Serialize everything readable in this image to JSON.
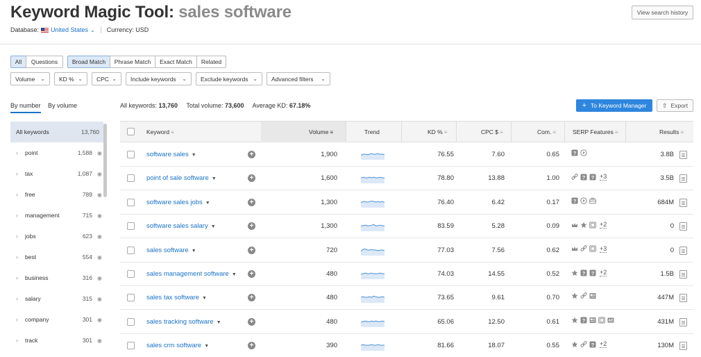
{
  "header": {
    "title": "Keyword Magic Tool:",
    "query": "sales software",
    "database_label": "Database:",
    "database_value": "United States",
    "currency": "Currency: USD",
    "history_button": "View search history"
  },
  "filters": {
    "group1": [
      "All",
      "Questions"
    ],
    "group2": [
      "Broad Match",
      "Phrase Match",
      "Exact Match",
      "Related"
    ],
    "dropdowns": [
      "Volume",
      "KD %",
      "CPC",
      "Include keywords",
      "Exclude keywords",
      "Advanced filters"
    ]
  },
  "sidebar": {
    "tabs": [
      "By number",
      "By volume"
    ],
    "items": [
      {
        "label": "All keywords",
        "count": "13,760"
      },
      {
        "label": "point",
        "count": "1,588"
      },
      {
        "label": "tax",
        "count": "1,087"
      },
      {
        "label": "free",
        "count": "789"
      },
      {
        "label": "management",
        "count": "715"
      },
      {
        "label": "jobs",
        "count": "623"
      },
      {
        "label": "best",
        "count": "554"
      },
      {
        "label": "business",
        "count": "316"
      },
      {
        "label": "salary",
        "count": "315"
      },
      {
        "label": "company",
        "count": "301"
      },
      {
        "label": "track",
        "count": "301"
      }
    ]
  },
  "stats": {
    "all_keywords_label": "All keywords:",
    "all_keywords_value": "13,760",
    "total_volume_label": "Total volume:",
    "total_volume_value": "73,600",
    "avg_kd_label": "Average KD:",
    "avg_kd_value": "67.18%"
  },
  "actions": {
    "keyword_manager": "To Keyword Manager",
    "export": "Export"
  },
  "table": {
    "columns": [
      "Keyword",
      "Volume",
      "Trend",
      "KD %",
      "CPC $",
      "Com.",
      "SERP Features",
      "Results"
    ],
    "rows": [
      {
        "keyword": "software sales",
        "volume": "1,900",
        "kd": "76.55",
        "cpc": "7.60",
        "com": "0.65",
        "serp_extra": "",
        "results": "3.8B",
        "serp_icons": [
          "question-icon",
          "play-icon"
        ],
        "trend": [
          0.4,
          0.5,
          0.5,
          0.45,
          0.5,
          0.55,
          0.5,
          0.5,
          0.55,
          0.5,
          0.5,
          0.45
        ]
      },
      {
        "keyword": "point of sale software",
        "volume": "1,600",
        "kd": "78.80",
        "cpc": "13.88",
        "com": "1.00",
        "serp_extra": "+3",
        "results": "3.5B",
        "serp_icons": [
          "link-icon",
          "question-icon",
          "question-icon"
        ],
        "trend": [
          0.5,
          0.55,
          0.5,
          0.5,
          0.55,
          0.5,
          0.55,
          0.5,
          0.5,
          0.55,
          0.5,
          0.5
        ]
      },
      {
        "keyword": "software sales jobs",
        "volume": "1,300",
        "kd": "76.40",
        "cpc": "6.42",
        "com": "0.17",
        "serp_extra": "",
        "results": "684M",
        "serp_icons": [
          "question-icon",
          "play-icon",
          "briefcase-icon"
        ],
        "trend": [
          0.45,
          0.55,
          0.55,
          0.5,
          0.55,
          0.6,
          0.55,
          0.5,
          0.55,
          0.5,
          0.55,
          0.5
        ]
      },
      {
        "keyword": "software sales salary",
        "volume": "1,300",
        "kd": "83.59",
        "cpc": "5.28",
        "com": "0.09",
        "serp_extra": "+2",
        "results": "0",
        "serp_icons": [
          "crown-icon",
          "star-icon",
          "image-icon"
        ],
        "trend": [
          0.5,
          0.5,
          0.55,
          0.5,
          0.5,
          0.55,
          0.6,
          0.5,
          0.5,
          0.55,
          0.5,
          0.5
        ]
      },
      {
        "keyword": "sales software",
        "volume": "720",
        "kd": "77.03",
        "cpc": "7.56",
        "com": "0.62",
        "serp_extra": "+3",
        "results": "0",
        "serp_icons": [
          "crown-icon",
          "link-icon",
          "image-icon"
        ],
        "trend": [
          0.4,
          0.55,
          0.6,
          0.5,
          0.5,
          0.55,
          0.5,
          0.5,
          0.45,
          0.5,
          0.5,
          0.45
        ]
      },
      {
        "keyword": "sales management software",
        "volume": "480",
        "kd": "74.03",
        "cpc": "14.55",
        "com": "0.52",
        "serp_extra": "+2",
        "results": "1.5B",
        "serp_icons": [
          "star-icon",
          "question-icon",
          "question-icon"
        ],
        "trend": [
          0.45,
          0.5,
          0.55,
          0.5,
          0.5,
          0.55,
          0.5,
          0.5,
          0.5,
          0.55,
          0.5,
          0.5
        ]
      },
      {
        "keyword": "sales tax software",
        "volume": "480",
        "kd": "73.65",
        "cpc": "9.61",
        "com": "0.70",
        "serp_extra": "",
        "results": "447M",
        "serp_icons": [
          "star-icon",
          "link-icon",
          "news-icon"
        ],
        "trend": [
          0.5,
          0.55,
          0.5,
          0.5,
          0.55,
          0.5,
          0.6,
          0.55,
          0.5,
          0.5,
          0.55,
          0.5
        ]
      },
      {
        "keyword": "sales tracking software",
        "volume": "480",
        "kd": "65.06",
        "cpc": "12.50",
        "com": "0.61",
        "serp_extra": "",
        "results": "431M",
        "serp_icons": [
          "star-icon",
          "question-icon",
          "news-icon",
          "image-icon",
          "ad-icon"
        ],
        "trend": [
          0.45,
          0.5,
          0.55,
          0.5,
          0.5,
          0.55,
          0.5,
          0.55,
          0.5,
          0.5,
          0.55,
          0.5
        ]
      },
      {
        "keyword": "sales crm software",
        "volume": "390",
        "kd": "81.66",
        "cpc": "18.07",
        "com": "0.55",
        "serp_extra": "+2",
        "results": "130M",
        "serp_icons": [
          "star-icon",
          "link-icon",
          "question-icon"
        ],
        "trend": [
          0.5,
          0.55,
          0.5,
          0.5,
          0.5,
          0.55,
          0.5,
          0.5,
          0.55,
          0.5,
          0.5,
          0.5
        ]
      }
    ]
  }
}
